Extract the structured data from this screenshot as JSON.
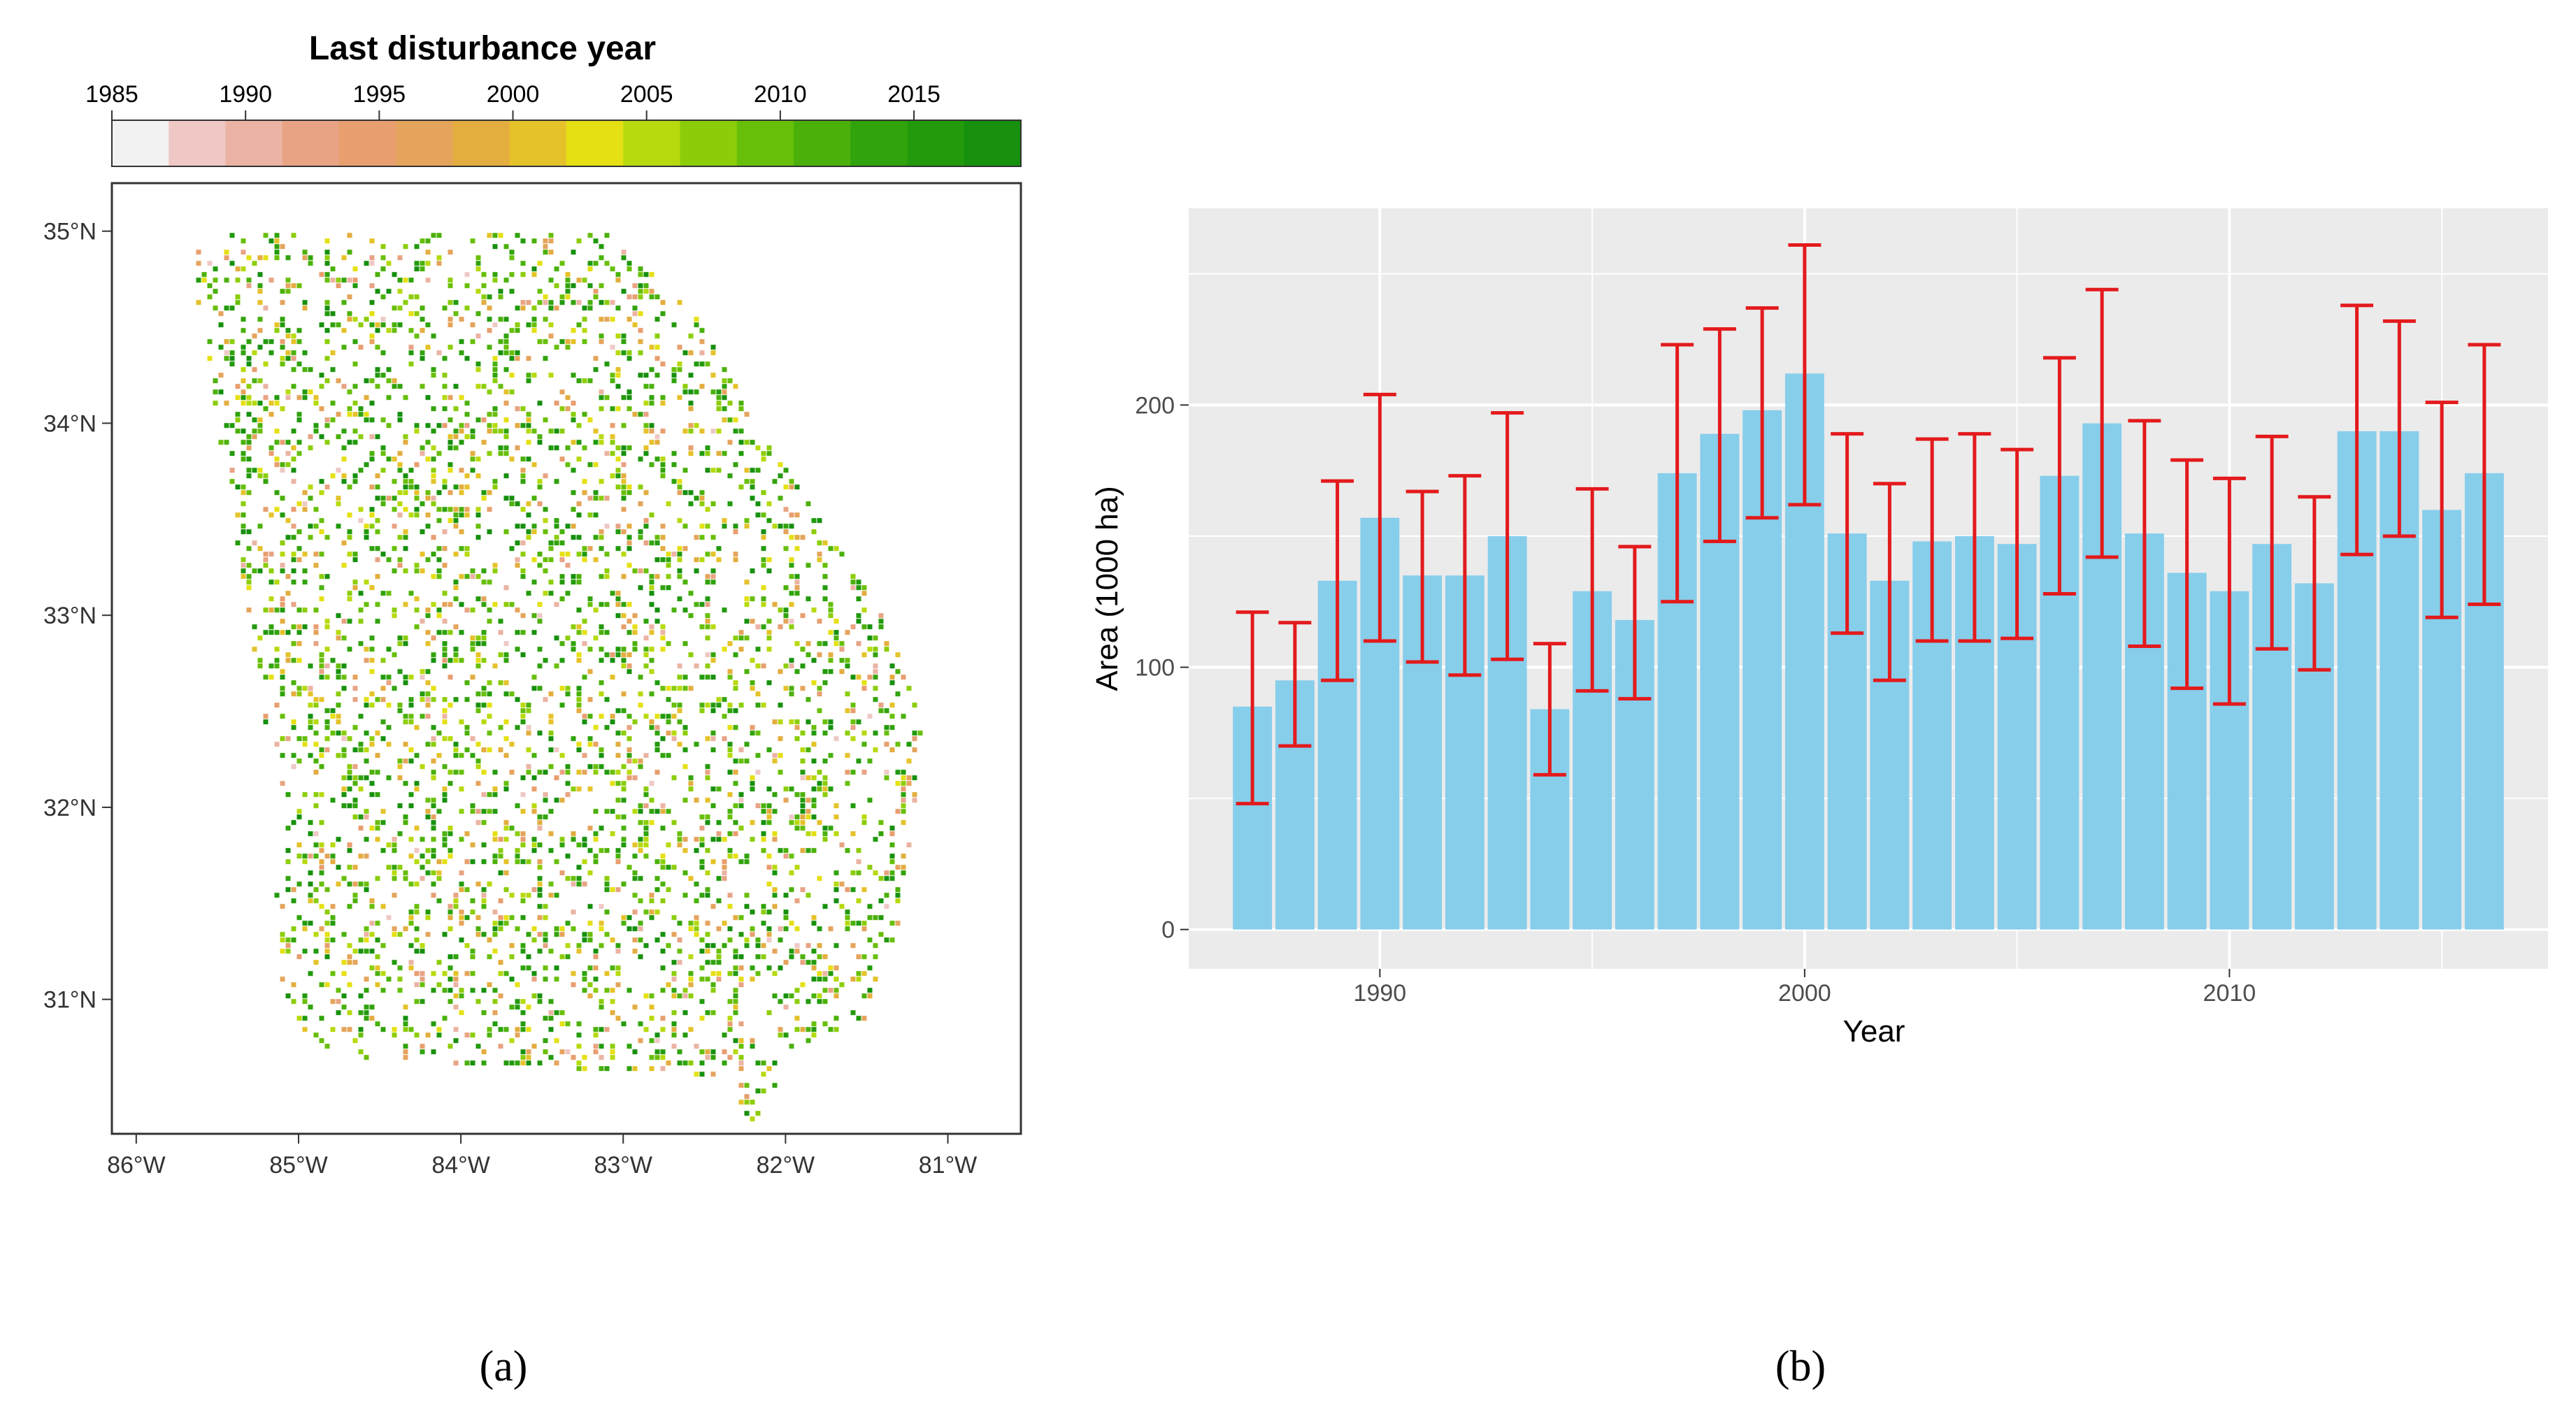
{
  "panel_a": {
    "legend_title": "Last disturbance year",
    "legend_ticks": [
      "1985",
      "1990",
      "1995",
      "2000",
      "2005",
      "2010",
      "2015"
    ],
    "legend_colors": [
      "#f2f2f2",
      "#efc8c5",
      "#ebb3a3",
      "#e8a384",
      "#e89e6f",
      "#e5a45c",
      "#e3ad3f",
      "#e5c22a",
      "#e5e013",
      "#b6da0e",
      "#8ccd0a",
      "#68bf09",
      "#4bb10a",
      "#31a30b",
      "#229a0c",
      "#16900d"
    ],
    "lat_labels": [
      "35°N",
      "34°N",
      "33°N",
      "32°N",
      "31°N"
    ],
    "lon_labels": [
      "86°W",
      "85°W",
      "84°W",
      "83°W",
      "82°W",
      "81°W"
    ],
    "caption": "(a)"
  },
  "panel_b": {
    "caption": "(b)",
    "colors": {
      "bar": "#87ceeb",
      "error": "#e31a1c",
      "panel_bg": "#ebebeb",
      "grid": "#ffffff"
    }
  },
  "chart_data": [
    {
      "type": "heatmap",
      "title": "Last disturbance year",
      "colorbar_range": [
        1985,
        2019
      ],
      "colorbar_ticks": [
        1985,
        1990,
        1995,
        2000,
        2005,
        2010,
        2015
      ],
      "xlim": [
        -86.15,
        -80.55
      ],
      "ylim": [
        30.3,
        35.25
      ],
      "x_ticks": [
        -86,
        -85,
        -84,
        -83,
        -82,
        -81
      ],
      "y_ticks": [
        31,
        32,
        33,
        34,
        35
      ]
    },
    {
      "type": "bar",
      "xlabel": "Year",
      "ylabel": "Area (1000 ha)",
      "xlim": [
        1985.5,
        2017.5
      ],
      "ylim": [
        -15,
        275
      ],
      "x_ticks": [
        1990,
        2000,
        2010
      ],
      "y_ticks": [
        0,
        100,
        200
      ],
      "x": [
        1987,
        1988,
        1989,
        1990,
        1991,
        1992,
        1993,
        1994,
        1995,
        1996,
        1997,
        1998,
        1999,
        2000,
        2001,
        2002,
        2003,
        2004,
        2005,
        2006,
        2007,
        2008,
        2009,
        2010,
        2011,
        2012,
        2013,
        2014,
        2015,
        2016
      ],
      "values": [
        85,
        95,
        133,
        157,
        135,
        135,
        150,
        84,
        129,
        118,
        174,
        189,
        198,
        212,
        151,
        133,
        148,
        150,
        147,
        173,
        193,
        151,
        136,
        129,
        147,
        132,
        190,
        190,
        160,
        174
      ],
      "lower": [
        48,
        70,
        95,
        110,
        102,
        97,
        103,
        59,
        91,
        88,
        125,
        148,
        157,
        162,
        113,
        95,
        110,
        110,
        111,
        128,
        142,
        108,
        92,
        86,
        107,
        99,
        143,
        150,
        119,
        124
      ],
      "upper": [
        121,
        117,
        171,
        204,
        167,
        173,
        197,
        109,
        168,
        146,
        223,
        229,
        237,
        261,
        189,
        170,
        187,
        189,
        183,
        218,
        244,
        194,
        179,
        172,
        188,
        165,
        238,
        232,
        201,
        223
      ]
    }
  ]
}
